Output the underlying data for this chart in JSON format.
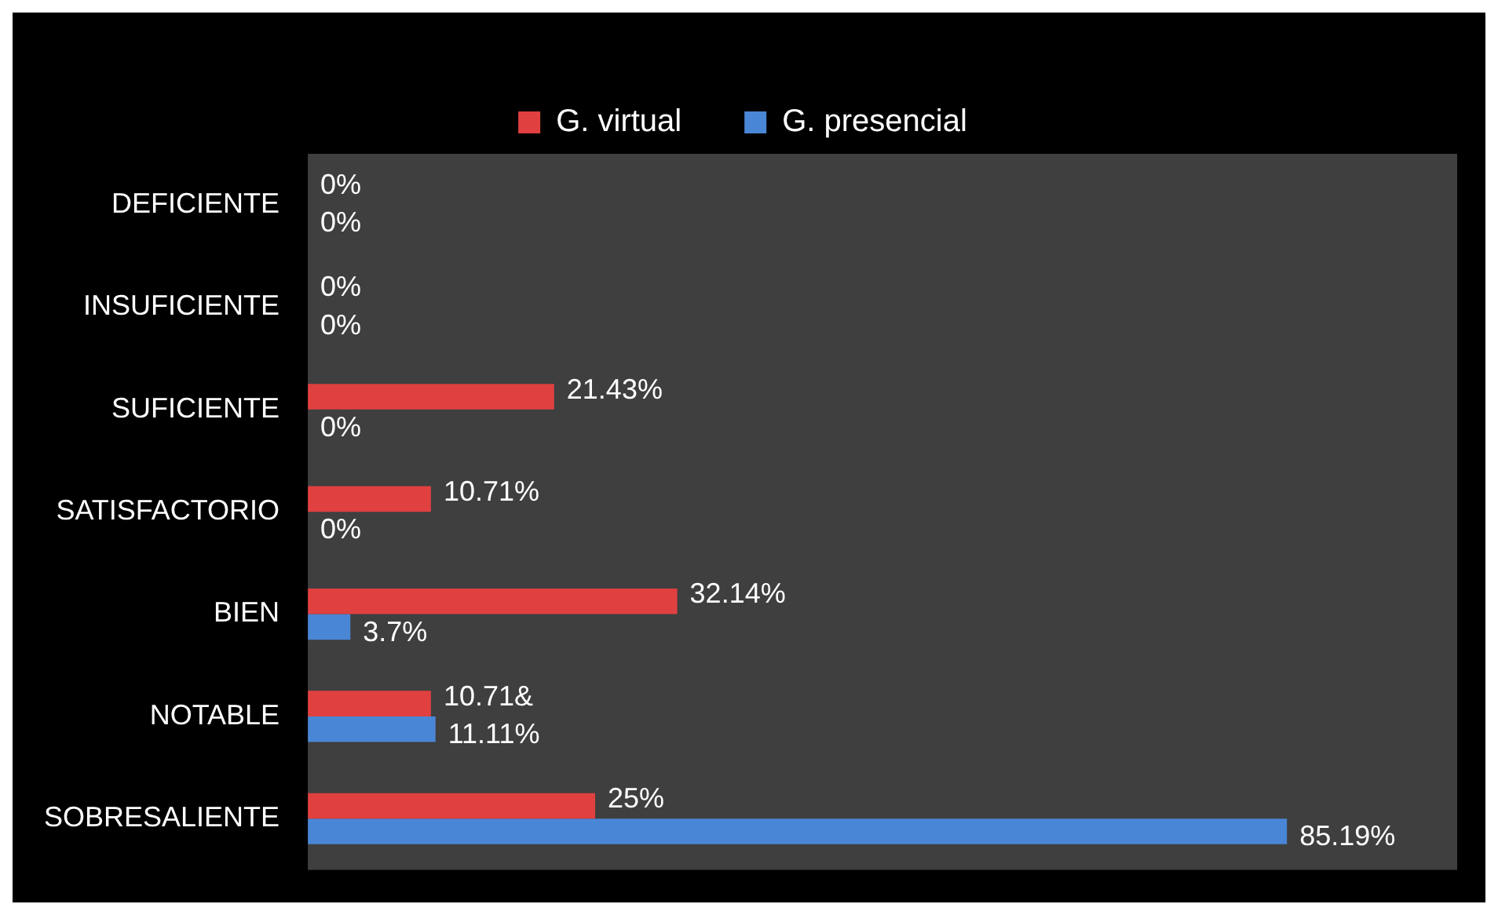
{
  "chart_data": {
    "type": "bar",
    "orientation": "horizontal",
    "categories": [
      "DEFICIENTE",
      "INSUFICIENTE",
      "SUFICIENTE",
      "SATISFACTORIO",
      "BIEN",
      "NOTABLE",
      "SOBRESALIENTE"
    ],
    "series": [
      {
        "name": "G. virtual",
        "color": "#e0403f",
        "values": [
          0,
          0,
          21.43,
          10.71,
          32.14,
          10.71,
          25
        ],
        "value_labels": [
          "0%",
          "0%",
          "21.43%",
          "10.71%",
          "32.14%",
          "10.71&",
          "25%"
        ]
      },
      {
        "name": "G. presencial",
        "color": "#4a86d6",
        "values": [
          0,
          0,
          0,
          0,
          3.7,
          11.11,
          85.19
        ],
        "value_labels": [
          "0%",
          "0%",
          "0%",
          "0%",
          "3.7%",
          "11.11%",
          "85.19%"
        ]
      }
    ],
    "xlim": [
      0,
      100
    ],
    "tick_labels": "y",
    "grid": false,
    "legend": "top"
  }
}
